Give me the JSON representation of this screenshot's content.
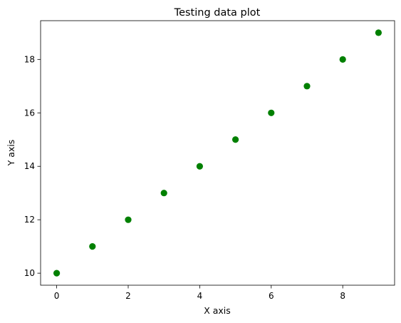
{
  "chart_data": {
    "type": "scatter",
    "title": "Testing data plot",
    "xlabel": "X axis",
    "ylabel": "Y axis",
    "x": [
      0,
      1,
      2,
      3,
      4,
      5,
      6,
      7,
      8,
      9
    ],
    "y": [
      10,
      11,
      12,
      13,
      14,
      15,
      16,
      17,
      18,
      19
    ],
    "xlim": [
      -0.45,
      9.45
    ],
    "ylim": [
      9.55,
      19.45
    ],
    "xticks": [
      0,
      2,
      4,
      6,
      8
    ],
    "yticks": [
      10,
      12,
      14,
      16,
      18
    ],
    "marker_color": "#008000",
    "grid": false,
    "legend": "none"
  }
}
